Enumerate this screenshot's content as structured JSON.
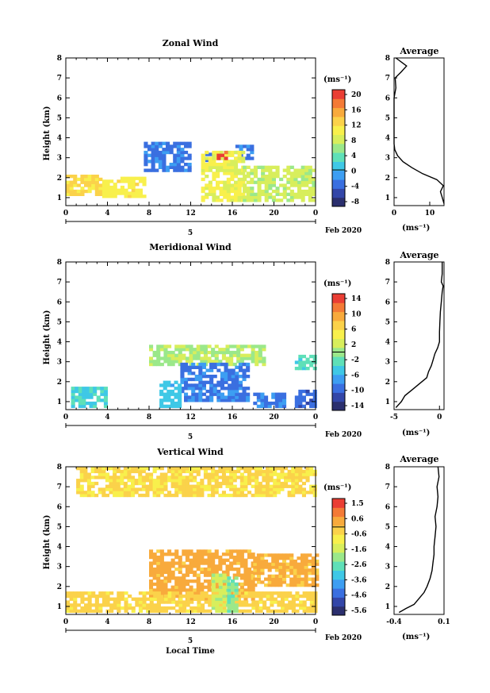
{
  "figure": {
    "date_label": "Feb 2020",
    "day_label": "5",
    "xlabel_bottom": "Local Time",
    "unit_label": "(ms⁻¹)",
    "colormap": [
      "#2b2f6e",
      "#3346a8",
      "#3a6fe0",
      "#3d9ef2",
      "#3fc8e6",
      "#5fe0b8",
      "#9be88a",
      "#d8ee5c",
      "#f8f04c",
      "#fbd24a",
      "#f8aa3c",
      "#f47a36",
      "#ea3e34"
    ]
  },
  "chart_data": [
    {
      "type": "heatmap",
      "title": "Zonal Wind",
      "xlabel": "",
      "ylabel": "Height (km)",
      "xlim": [
        0,
        24
      ],
      "ylim": [
        0.6,
        8
      ],
      "xticks": [
        "0",
        "4",
        "8",
        "12",
        "16",
        "20",
        "0"
      ],
      "yticks": [
        "1",
        "2",
        "3",
        "4",
        "5",
        "6",
        "7",
        "8"
      ],
      "colorbar_ticks": [
        "20",
        "16",
        "12",
        "8",
        "4",
        "0",
        "-4",
        "-8"
      ],
      "colorbar_range": [
        -10,
        22
      ],
      "regions": [
        {
          "x": [
            7.5,
            11.8
          ],
          "y": [
            2.3,
            3.7
          ],
          "value": -3
        },
        {
          "x": [
            13.4,
            13.8
          ],
          "y": [
            2.8,
            3.2
          ],
          "value": -3
        },
        {
          "x": [
            16.3,
            17.8
          ],
          "y": [
            2.9,
            3.6
          ],
          "value": -3
        },
        {
          "x": [
            0,
            3.5
          ],
          "y": [
            1.1,
            2.1
          ],
          "value": 13
        },
        {
          "x": [
            3.5,
            7.5
          ],
          "y": [
            1.0,
            1.9
          ],
          "value": 11
        },
        {
          "x": [
            13,
            17
          ],
          "y": [
            0.8,
            3.2
          ],
          "value": 10
        },
        {
          "x": [
            17,
            24
          ],
          "y": [
            0.8,
            2.5
          ],
          "value": 8
        },
        {
          "x": [
            14.5,
            15.5
          ],
          "y": [
            2.9,
            3.2
          ],
          "value": 20
        }
      ],
      "average": {
        "title": "Average",
        "xlim": [
          0,
          14
        ],
        "xticks": [
          "0",
          "10"
        ],
        "height": [
          0.7,
          1.0,
          1.3,
          1.6,
          1.9,
          2.2,
          2.5,
          2.8,
          3.1,
          3.4,
          3.7,
          4.0,
          4.5,
          5.0,
          5.5,
          6.0,
          6.5,
          7.0,
          7.3,
          7.6,
          8.0
        ],
        "value": [
          14,
          13.5,
          13,
          13.8,
          12,
          8,
          5,
          2.5,
          1,
          0.2,
          0,
          0,
          0,
          0,
          0,
          0,
          0.5,
          0.3,
          2,
          3.5,
          0.5
        ]
      }
    },
    {
      "type": "heatmap",
      "title": "Meridional Wind",
      "xlabel": "",
      "ylabel": "Height (km)",
      "xlim": [
        0,
        24
      ],
      "ylim": [
        0.6,
        8
      ],
      "xticks": [
        "0",
        "4",
        "8",
        "12",
        "16",
        "20",
        "0"
      ],
      "yticks": [
        "1",
        "2",
        "3",
        "4",
        "5",
        "6",
        "7",
        "8"
      ],
      "colorbar_ticks": [
        "14",
        "10",
        "6",
        "2",
        "-2",
        "-6",
        "-10",
        "-14"
      ],
      "colorbar_range": [
        -16,
        16
      ],
      "regions": [
        {
          "x": [
            8,
            19
          ],
          "y": [
            2.8,
            3.7
          ],
          "value": 1
        },
        {
          "x": [
            11,
            17.5
          ],
          "y": [
            1.0,
            2.8
          ],
          "value": -9
        },
        {
          "x": [
            9,
            11
          ],
          "y": [
            0.7,
            2.0
          ],
          "value": -5
        },
        {
          "x": [
            0.5,
            4
          ],
          "y": [
            0.7,
            1.6
          ],
          "value": -4
        },
        {
          "x": [
            18,
            21
          ],
          "y": [
            0.7,
            1.4
          ],
          "value": -9
        },
        {
          "x": [
            22,
            24
          ],
          "y": [
            0.7,
            1.5
          ],
          "value": -10
        },
        {
          "x": [
            22,
            24
          ],
          "y": [
            2.6,
            3.2
          ],
          "value": -3
        }
      ],
      "average": {
        "title": "Average",
        "xlim": [
          -5,
          0.5
        ],
        "xticks": [
          "-5",
          "0"
        ],
        "height": [
          0.7,
          1.0,
          1.3,
          1.6,
          1.9,
          2.2,
          2.5,
          2.8,
          3.1,
          3.4,
          3.7,
          4.0,
          4.5,
          5.0,
          5.5,
          6.0,
          6.5,
          6.8,
          7.0,
          7.4,
          8.0
        ],
        "value": [
          -4.8,
          -4.2,
          -3.8,
          -3.0,
          -2.2,
          -1.4,
          -1.2,
          -0.9,
          -0.7,
          -0.5,
          -0.2,
          0,
          0,
          0.05,
          0.1,
          0.2,
          0.3,
          0.4,
          0.2,
          0.3,
          0.3
        ]
      }
    },
    {
      "type": "heatmap",
      "title": "Vertical Wind",
      "xlabel": "Local Time",
      "ylabel": "Height (km)",
      "xlim": [
        0,
        24
      ],
      "ylim": [
        0.6,
        8
      ],
      "xticks": [
        "0",
        "4",
        "8",
        "12",
        "16",
        "20",
        "0"
      ],
      "yticks": [
        "1",
        "2",
        "3",
        "4",
        "5",
        "6",
        "7",
        "8"
      ],
      "colorbar_ticks": [
        "1.5",
        "0.6",
        "-0.6",
        "-1.6",
        "-2.6",
        "-3.6",
        "-4.6",
        "-5.6"
      ],
      "colorbar_range": [
        -6.2,
        2
      ],
      "regions": [
        {
          "x": [
            8,
            18
          ],
          "y": [
            1.3,
            3.8
          ],
          "value": 0.4
        },
        {
          "x": [
            0,
            24
          ],
          "y": [
            0.7,
            1.6
          ],
          "value": -0.3
        },
        {
          "x": [
            18,
            24
          ],
          "y": [
            2.0,
            3.5
          ],
          "value": 0.3
        },
        {
          "x": [
            1,
            24
          ],
          "y": [
            6.5,
            8.0
          ],
          "value": -0.4
        },
        {
          "x": [
            14,
            15.5
          ],
          "y": [
            0.7,
            2.6
          ],
          "value": -1.6
        },
        {
          "x": [
            15.5,
            16.5
          ],
          "y": [
            0.7,
            2.4
          ],
          "value": -2.4
        }
      ],
      "average": {
        "title": "Average",
        "xlim": [
          -0.4,
          0.1
        ],
        "xticks": [
          "-0.4",
          "0.1"
        ],
        "height": [
          0.7,
          0.9,
          1.1,
          1.4,
          1.7,
          2.0,
          2.4,
          2.8,
          3.2,
          3.6,
          4.0,
          4.5,
          5.0,
          5.5,
          6.0,
          6.5,
          7.0,
          7.5,
          8.0
        ],
        "value": [
          -0.35,
          -0.28,
          -0.2,
          -0.15,
          -0.1,
          -0.07,
          -0.04,
          -0.02,
          -0.01,
          0,
          0,
          0.01,
          0.02,
          0.01,
          0.03,
          0.04,
          0.03,
          0.05,
          0.04
        ]
      }
    }
  ]
}
